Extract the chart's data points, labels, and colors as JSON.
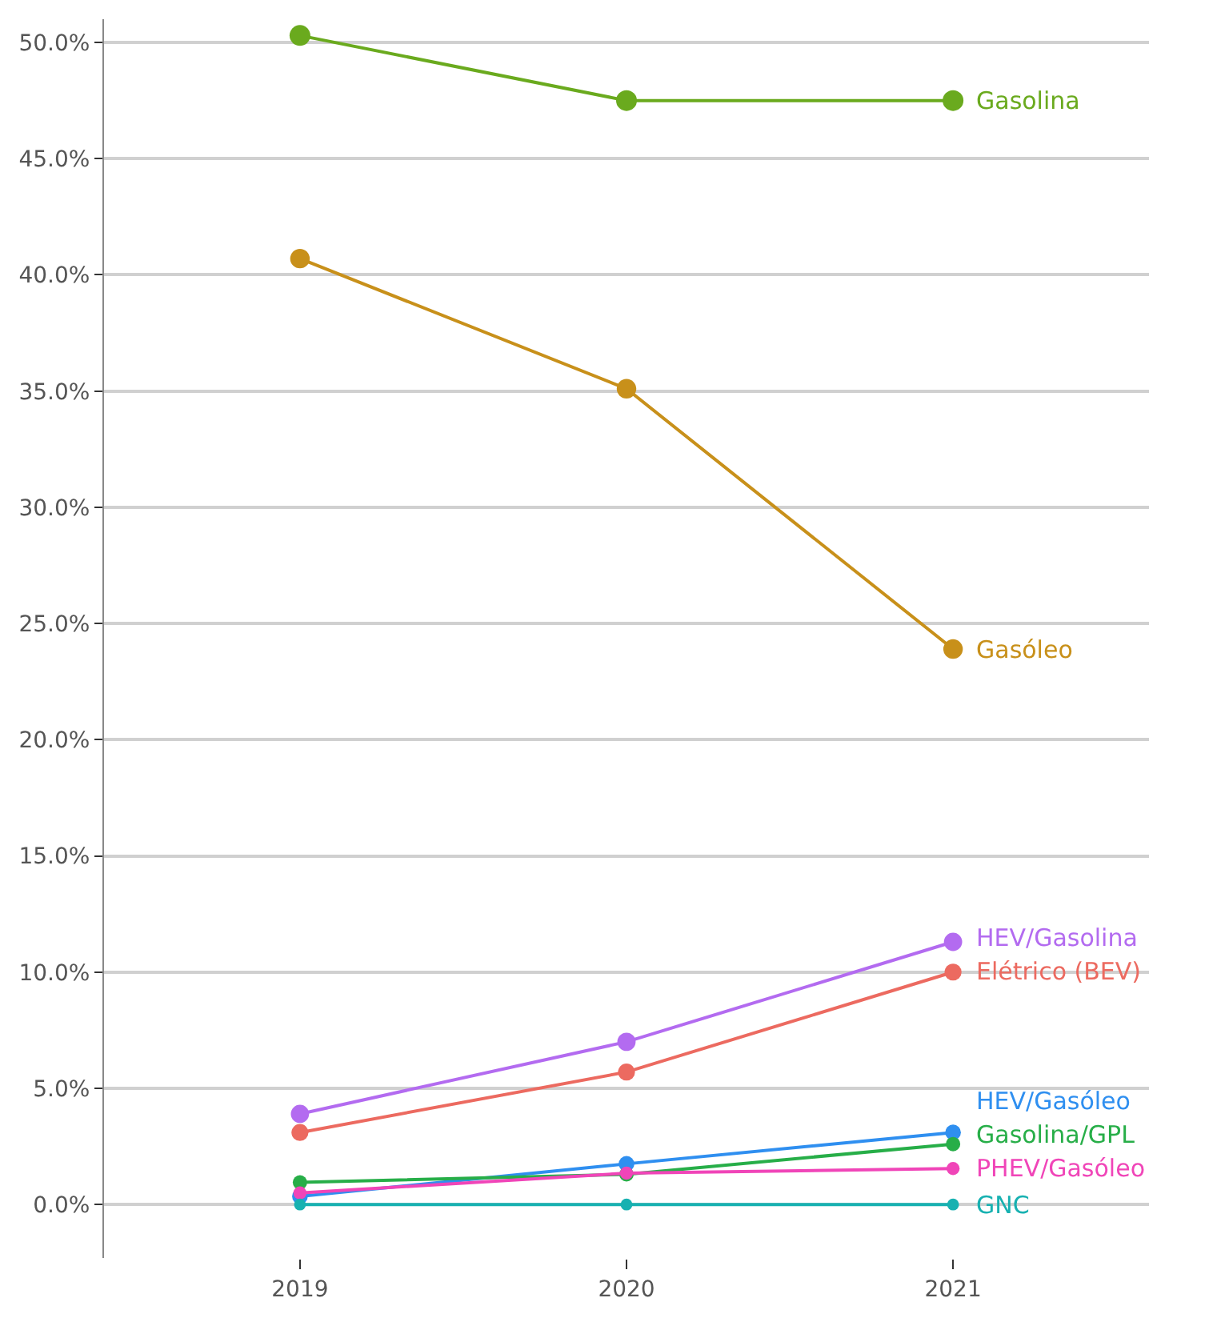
{
  "chart_data": {
    "type": "line",
    "x": [
      2019,
      2020,
      2021
    ],
    "series": [
      {
        "name": "Gasolina",
        "color": "#6aaa1e",
        "values": [
          50.3,
          47.5,
          47.5
        ]
      },
      {
        "name": "Gasóleo",
        "color": "#c8901a",
        "values": [
          40.7,
          35.1,
          23.9
        ]
      },
      {
        "name": "HEV/Gasolina",
        "color": "#b36bf0",
        "values": [
          3.9,
          7.0,
          11.3
        ]
      },
      {
        "name": "Elétrico (BEV)",
        "color": "#ec6a60",
        "values": [
          3.1,
          5.7,
          10.0
        ]
      },
      {
        "name": "HEV/Gasóleo",
        "color": "#2f8ff0",
        "values": [
          0.35,
          1.75,
          3.1
        ]
      },
      {
        "name": "Gasolina/GPL",
        "color": "#27ae48",
        "values": [
          0.95,
          1.3,
          2.6
        ]
      },
      {
        "name": "PHEV/Gasóleo",
        "color": "#f045b8",
        "values": [
          0.5,
          1.35,
          1.55
        ]
      },
      {
        "name": "GNC",
        "color": "#17b1b1",
        "values": [
          0,
          0,
          0
        ]
      }
    ],
    "xlim": [
      2018.4,
      2021.6
    ],
    "xticks": [
      2019,
      2020,
      2021
    ],
    "ylim": [
      -2.3,
      51
    ],
    "yticks": [
      {
        "value": 0,
        "label": "0.0%"
      },
      {
        "value": 5,
        "label": "5.0%"
      },
      {
        "value": 10,
        "label": "10.0%"
      },
      {
        "value": 15,
        "label": "15.0%"
      },
      {
        "value": 20,
        "label": "20.0%"
      },
      {
        "value": 25,
        "label": "25.0%"
      },
      {
        "value": 30,
        "label": "30.0%"
      },
      {
        "value": 35,
        "label": "35.0%"
      },
      {
        "value": 40,
        "label": "40.0%"
      },
      {
        "value": 45,
        "label": "45.0%"
      },
      {
        "value": 50,
        "label": "50.0%"
      }
    ],
    "grid": "y",
    "legend": false,
    "marker": "circle",
    "line_style": "solid"
  }
}
